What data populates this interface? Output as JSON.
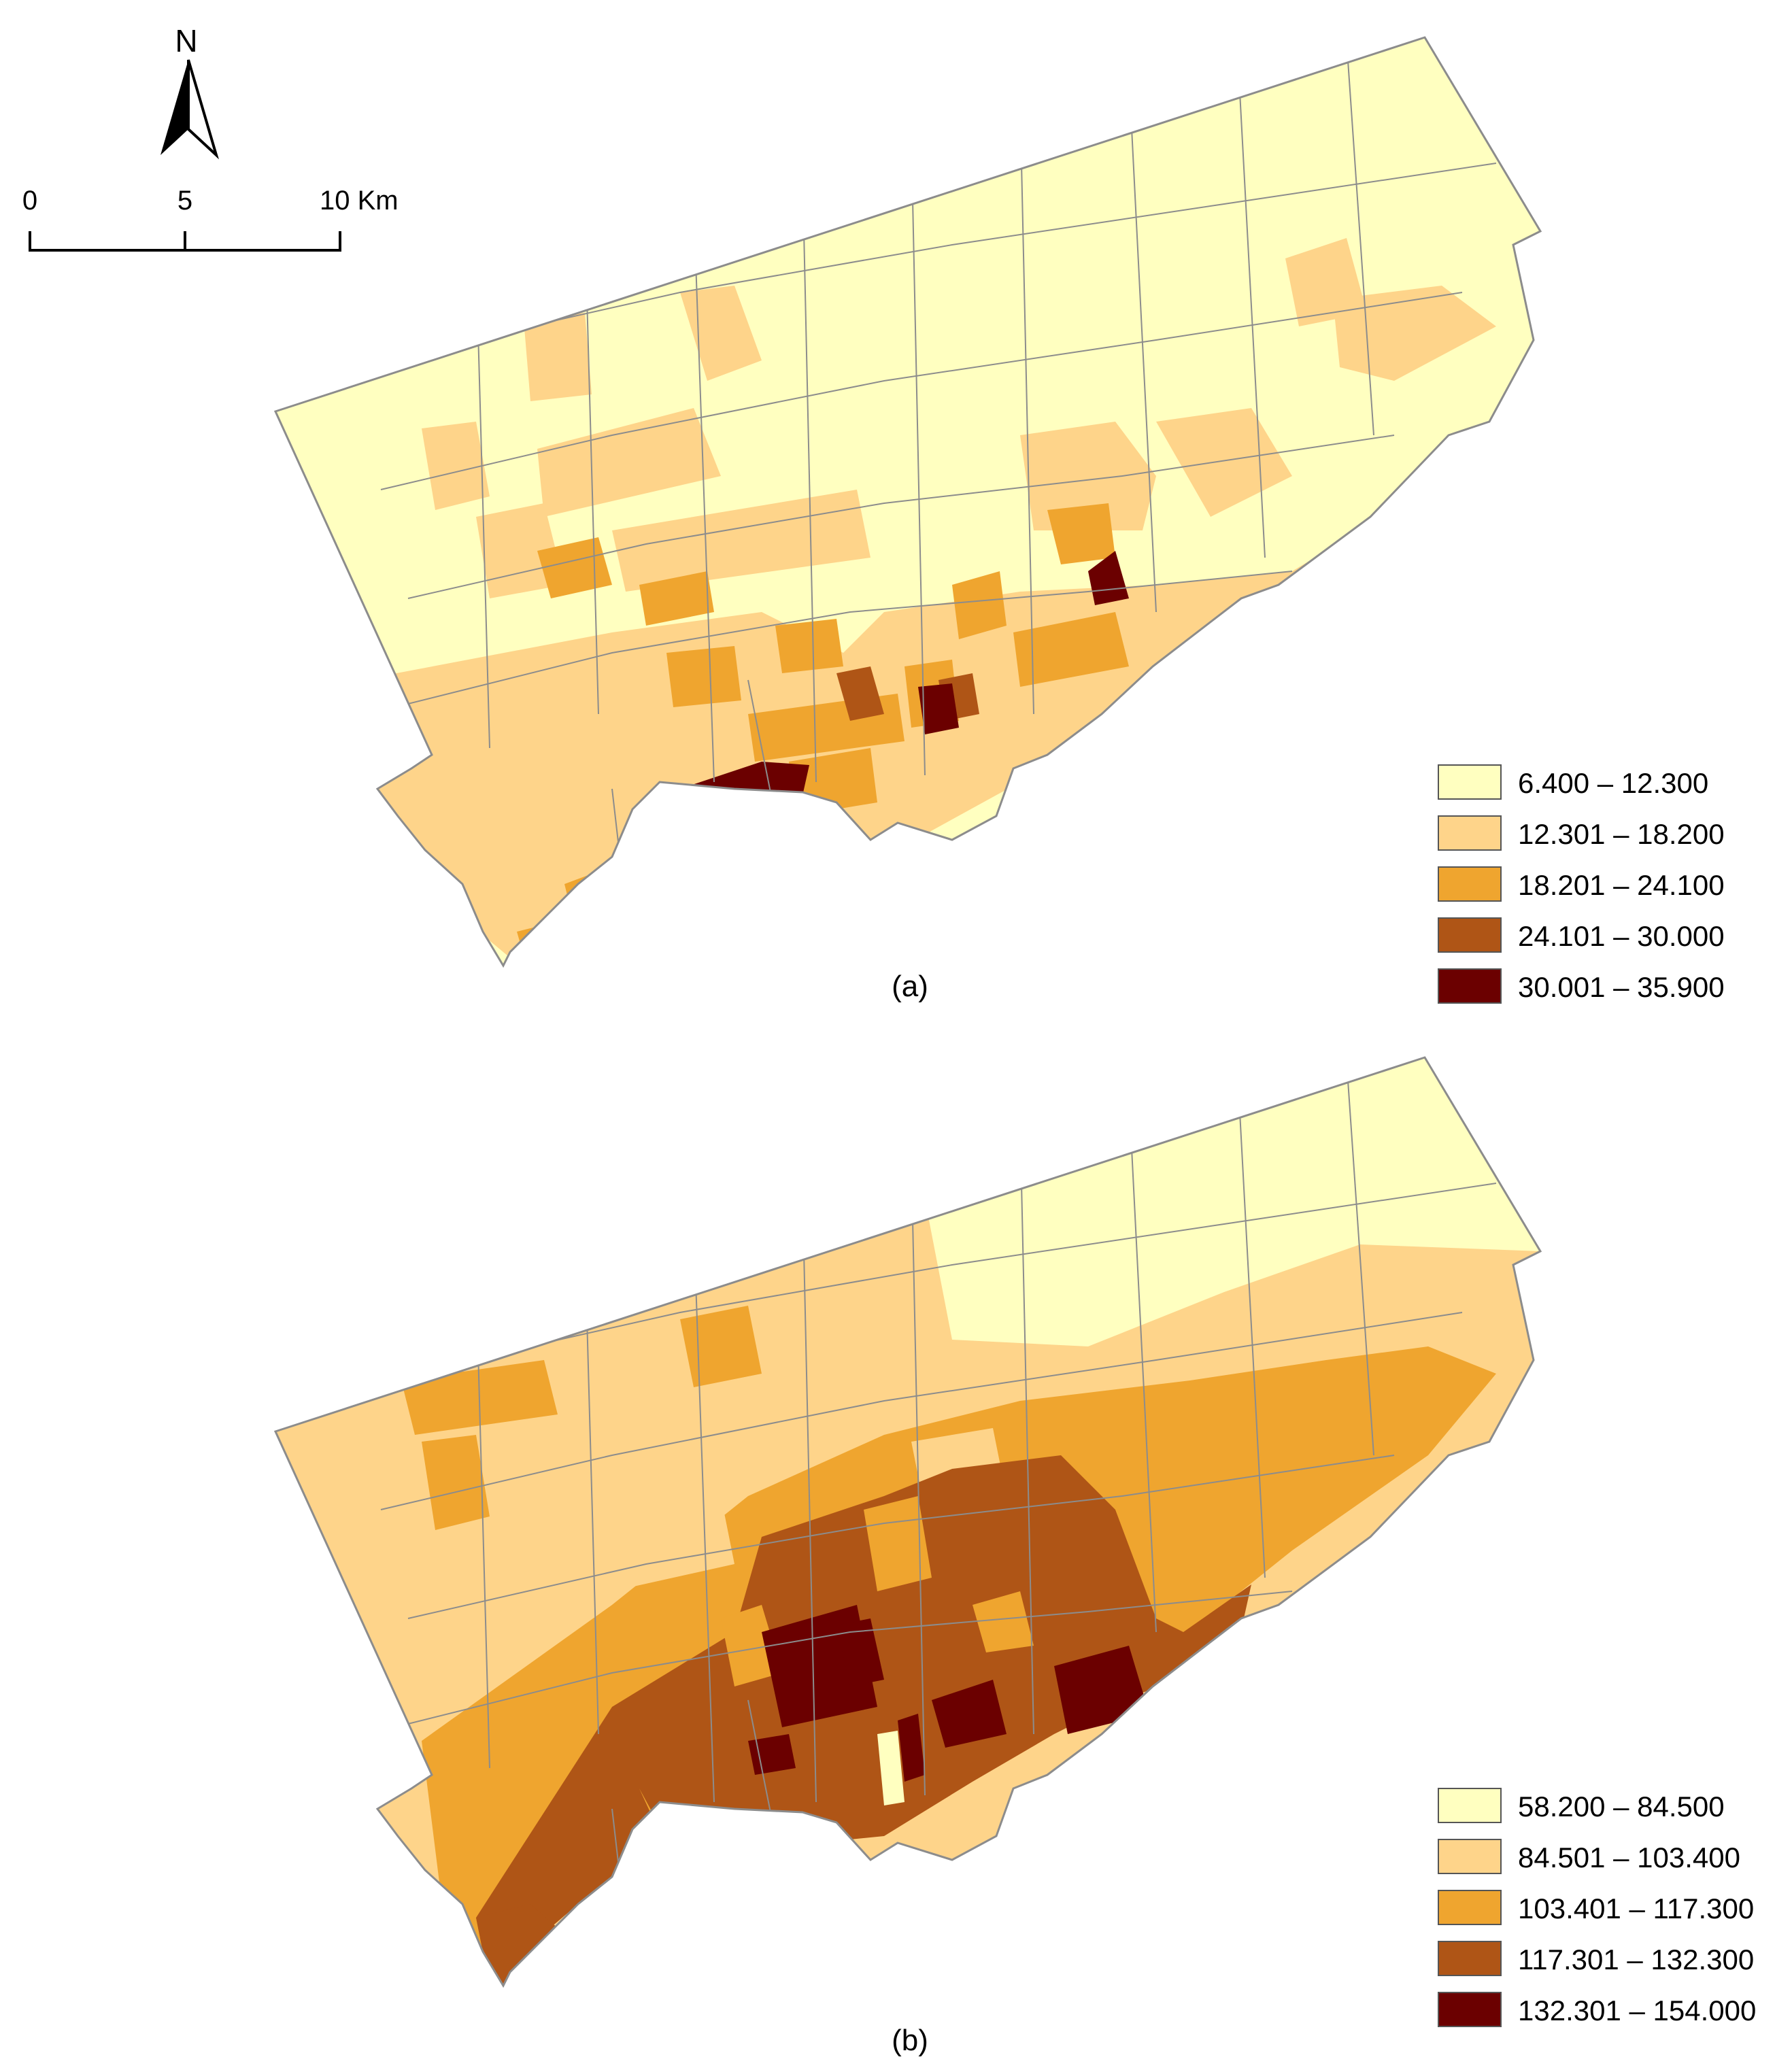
{
  "north_arrow": {
    "label": "N"
  },
  "scale_bar": {
    "ticks": [
      "0",
      "5",
      "10 Km"
    ]
  },
  "colors": {
    "class1": "#FFFFC0",
    "class2": "#FED48A",
    "class3": "#EFA52F",
    "class4": "#AF5516",
    "class5": "#6B0000",
    "boundary": "#8C8C8C"
  },
  "panel_a": {
    "caption": "(a)",
    "legend": [
      {
        "label": "6.400 – 12.300",
        "color_class": "class1"
      },
      {
        "label": "12.301 – 18.200",
        "color_class": "class2"
      },
      {
        "label": "18.201 – 24.100",
        "color_class": "class3"
      },
      {
        "label": "24.101 – 30.000",
        "color_class": "class4"
      },
      {
        "label": "30.001 – 35.900",
        "color_class": "class5"
      }
    ]
  },
  "panel_b": {
    "caption": "(b)",
    "legend": [
      {
        "label": "58.200 – 84.500",
        "color_class": "class1"
      },
      {
        "label": "84.501 – 103.400",
        "color_class": "class2"
      },
      {
        "label": "103.401 – 117.300",
        "color_class": "class3"
      },
      {
        "label": "117.301 – 132.300",
        "color_class": "class4"
      },
      {
        "label": "132.301 – 154.000",
        "color_class": "class5"
      }
    ]
  }
}
